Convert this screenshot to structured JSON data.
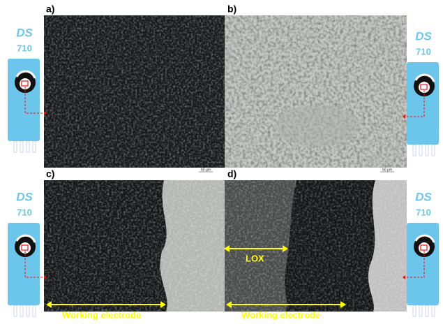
{
  "panels": [
    {
      "label": "a)",
      "scale_bar": "50 µm"
    },
    {
      "label": "b)",
      "scale_bar": "50 µm"
    },
    {
      "label": "c)"
    },
    {
      "label": "d)"
    }
  ],
  "sensors": [
    {
      "brand": "DS",
      "model": "710"
    },
    {
      "brand": "DS",
      "model": "710"
    },
    {
      "brand": "DS",
      "model": "710"
    },
    {
      "brand": "DS",
      "model": "710"
    }
  ],
  "annotations": {
    "lox": "LOX",
    "working_electrode_c": "Working electrode",
    "working_electrode_d": "Working electrode"
  }
}
